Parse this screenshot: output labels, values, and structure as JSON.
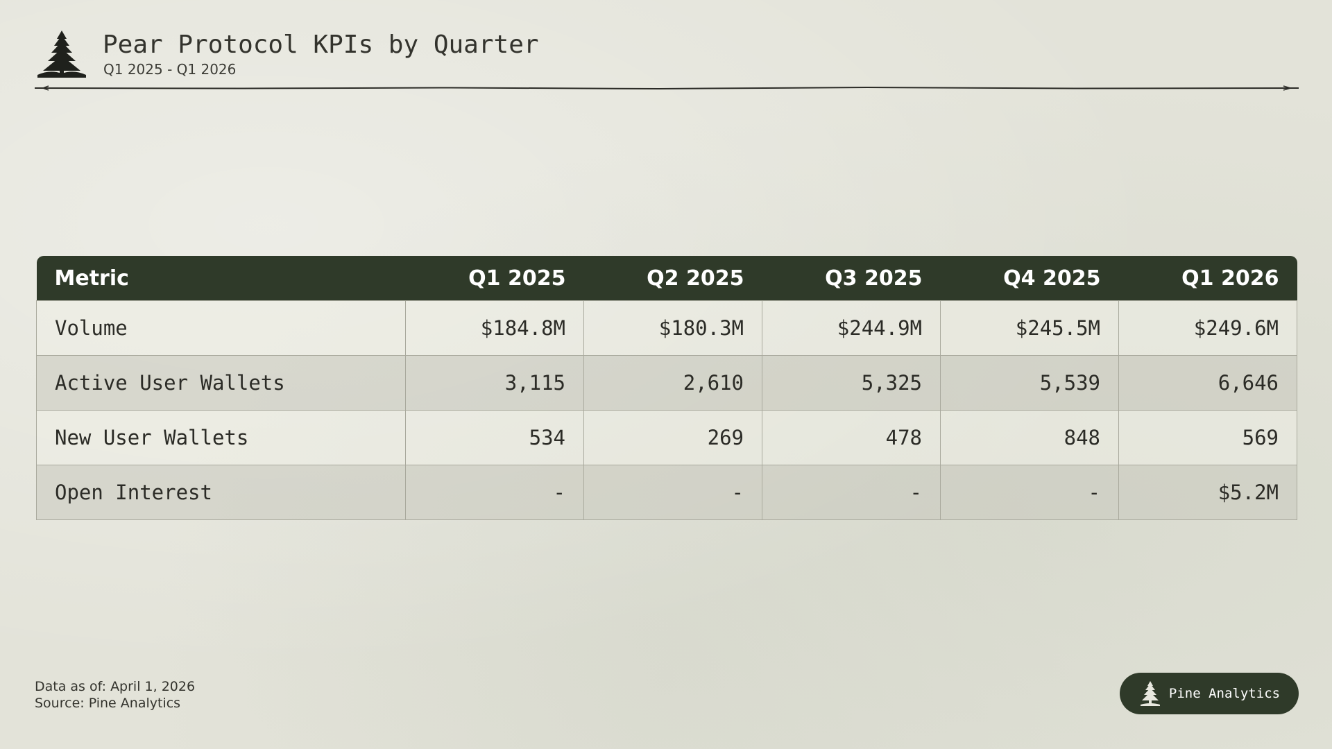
{
  "header": {
    "title": "Pear Protocol KPIs by Quarter",
    "subtitle": "Q1 2025 - Q1 2026",
    "logo_icon": "pine-tree-icon"
  },
  "chart_data": {
    "type": "table",
    "columns": [
      "Metric",
      "Q1 2025",
      "Q2 2025",
      "Q3 2025",
      "Q4 2025",
      "Q1 2026"
    ],
    "rows": [
      {
        "metric": "Volume",
        "values": [
          "$184.8M",
          "$180.3M",
          "$244.9M",
          "$245.5M",
          "$249.6M"
        ]
      },
      {
        "metric": "Active User Wallets",
        "values": [
          "3,115",
          "2,610",
          "5,325",
          "5,539",
          "6,646"
        ]
      },
      {
        "metric": "New User Wallets",
        "values": [
          "534",
          "269",
          "478",
          "848",
          "569"
        ]
      },
      {
        "metric": "Open Interest",
        "values": [
          "-",
          "-",
          "-",
          "-",
          "$5.2M"
        ]
      }
    ],
    "numeric": {
      "Volume_usd_millions": [
        184.8,
        180.3,
        244.9,
        245.5,
        249.6
      ],
      "Active User Wallets": [
        3115,
        2610,
        5325,
        5539,
        6646
      ],
      "New User Wallets": [
        534,
        269,
        478,
        848,
        569
      ],
      "Open Interest_usd_millions": [
        null,
        null,
        null,
        null,
        5.2
      ]
    }
  },
  "footer": {
    "data_as_of": "Data as of: April 1, 2026",
    "source": "Source: Pine Analytics"
  },
  "brand": {
    "name": "Pine Analytics",
    "icon": "pine-tree-icon"
  },
  "colors": {
    "header_bg": "#2f3a29",
    "page_bg": "#e3e3d9",
    "row_light": "#eeeee6",
    "row_dark": "#c8c8be"
  }
}
